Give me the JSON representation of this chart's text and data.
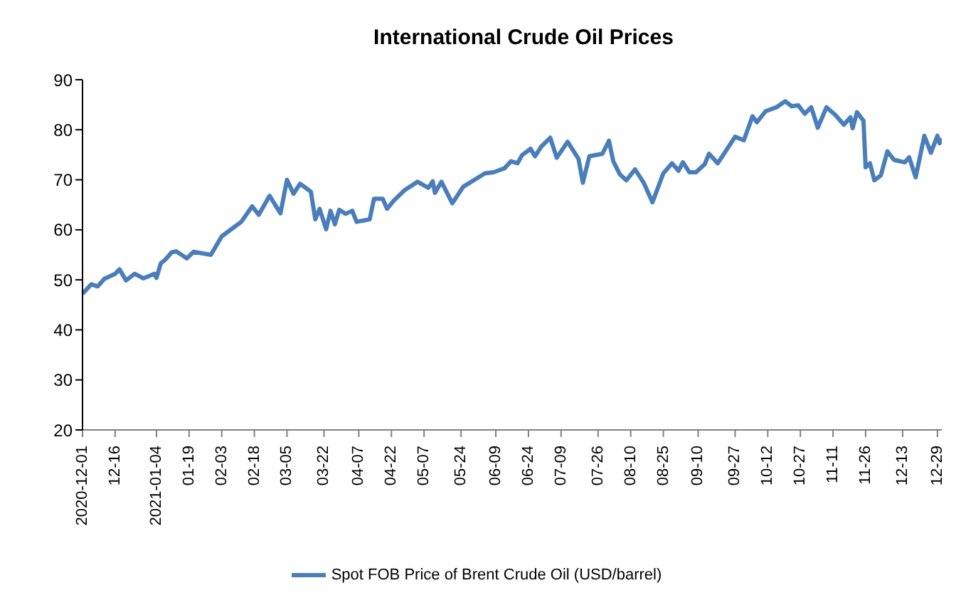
{
  "chart_data": {
    "type": "line",
    "title": "International Crude Oil Prices",
    "x": [
      "2020-12-01",
      "2020-12-05",
      "2020-12-08",
      "2020-12-11",
      "2020-12-16",
      "2020-12-18",
      "2020-12-21",
      "2020-12-25",
      "2020-12-29",
      "2021-01-03",
      "2021-01-04",
      "2021-01-06",
      "2021-01-08",
      "2021-01-11",
      "2021-01-13",
      "2021-01-18",
      "2021-01-21",
      "2021-01-29",
      "2021-02-03",
      "2021-02-12",
      "2021-02-17",
      "2021-02-20",
      "2021-02-25",
      "2021-03-02",
      "2021-03-05",
      "2021-03-08",
      "2021-03-11",
      "2021-03-16",
      "2021-03-18",
      "2021-03-20",
      "2021-03-23",
      "2021-03-25",
      "2021-03-27",
      "2021-03-29",
      "2021-04-01",
      "2021-04-04",
      "2021-04-06",
      "2021-04-12",
      "2021-04-14",
      "2021-04-18",
      "2021-04-20",
      "2021-04-23",
      "2021-04-28",
      "2021-05-04",
      "2021-05-09",
      "2021-05-11",
      "2021-05-12",
      "2021-05-15",
      "2021-05-20",
      "2021-05-25",
      "2021-06-04",
      "2021-06-08",
      "2021-06-13",
      "2021-06-16",
      "2021-06-19",
      "2021-06-21",
      "2021-06-25",
      "2021-06-27",
      "2021-06-30",
      "2021-07-04",
      "2021-07-07",
      "2021-07-12",
      "2021-07-17",
      "2021-07-19",
      "2021-07-22",
      "2021-07-28",
      "2021-07-31",
      "2021-08-02",
      "2021-08-05",
      "2021-08-08",
      "2021-08-12",
      "2021-08-16",
      "2021-08-20",
      "2021-08-25",
      "2021-08-29",
      "2021-09-01",
      "2021-09-03",
      "2021-09-06",
      "2021-09-09",
      "2021-09-13",
      "2021-09-15",
      "2021-09-19",
      "2021-09-27",
      "2021-10-01",
      "2021-10-05",
      "2021-10-07",
      "2021-10-11",
      "2021-10-16",
      "2021-10-20",
      "2021-10-23",
      "2021-10-26",
      "2021-10-29",
      "2021-11-01",
      "2021-11-04",
      "2021-11-08",
      "2021-11-12",
      "2021-11-16",
      "2021-11-19",
      "2021-11-20",
      "2021-11-22",
      "2021-11-25",
      "2021-11-26",
      "2021-11-28",
      "2021-11-30",
      "2021-12-03",
      "2021-12-06",
      "2021-12-09",
      "2021-12-14",
      "2021-12-16",
      "2021-12-19",
      "2021-12-23",
      "2021-12-26",
      "2021-12-29",
      "2021-12-30",
      "2021-12-31"
    ],
    "series": [
      {
        "name": "Spot FOB Price of Brent Crude Oil (USD/barrel)",
        "color": "#4a7ebb",
        "values": [
          47.2,
          49.1,
          48.7,
          50.2,
          51.2,
          52.1,
          49.9,
          51.2,
          50.3,
          51.2,
          50.4,
          53.3,
          54.0,
          55.5,
          55.7,
          54.3,
          55.6,
          55.0,
          58.7,
          61.6,
          64.7,
          63.0,
          66.8,
          63.3,
          70.0,
          67.2,
          69.2,
          67.6,
          62.1,
          64.2,
          60.1,
          63.8,
          61.1,
          64.0,
          63.2,
          63.8,
          61.6,
          62.1,
          66.2,
          66.2,
          64.2,
          65.8,
          67.9,
          69.6,
          68.4,
          69.7,
          67.4,
          69.6,
          65.3,
          68.6,
          71.3,
          71.5,
          72.3,
          73.7,
          73.3,
          74.9,
          76.2,
          74.7,
          76.7,
          78.4,
          74.4,
          77.6,
          74.2,
          69.4,
          74.7,
          75.2,
          77.8,
          73.7,
          71.1,
          69.9,
          72.1,
          69.4,
          65.5,
          71.3,
          73.3,
          71.8,
          73.5,
          71.5,
          71.5,
          73.1,
          75.2,
          73.3,
          78.6,
          77.9,
          82.7,
          81.5,
          83.7,
          84.5,
          85.7,
          84.7,
          84.9,
          83.2,
          84.5,
          80.4,
          84.5,
          83.0,
          81.0,
          82.5,
          80.3,
          83.5,
          81.8,
          72.5,
          73.3,
          69.9,
          70.9,
          75.7,
          74.0,
          73.5,
          74.5,
          70.5,
          78.8,
          75.4,
          78.8,
          77.3,
          78.3
        ]
      }
    ],
    "xlim": [
      "2020-12-01",
      "2021-12-31"
    ],
    "xticks": [
      {
        "value": "2020-12-01",
        "label": "2020-12-01"
      },
      {
        "value": "2020-12-16",
        "label": "12-16"
      },
      {
        "value": "2021-01-04",
        "label": "2021-01-04"
      },
      {
        "value": "2021-01-19",
        "label": "01-19"
      },
      {
        "value": "2021-02-03",
        "label": "02-03"
      },
      {
        "value": "2021-02-18",
        "label": "02-18"
      },
      {
        "value": "2021-03-05",
        "label": "03-05"
      },
      {
        "value": "2021-03-22",
        "label": "03-22"
      },
      {
        "value": "2021-04-07",
        "label": "04-07"
      },
      {
        "value": "2021-04-22",
        "label": "04-22"
      },
      {
        "value": "2021-05-07",
        "label": "05-07"
      },
      {
        "value": "2021-05-24",
        "label": "05-24"
      },
      {
        "value": "2021-06-09",
        "label": "06-09"
      },
      {
        "value": "2021-06-24",
        "label": "06-24"
      },
      {
        "value": "2021-07-09",
        "label": "07-09"
      },
      {
        "value": "2021-07-26",
        "label": "07-26"
      },
      {
        "value": "2021-08-10",
        "label": "08-10"
      },
      {
        "value": "2021-08-25",
        "label": "08-25"
      },
      {
        "value": "2021-09-10",
        "label": "09-10"
      },
      {
        "value": "2021-09-27",
        "label": "09-27"
      },
      {
        "value": "2021-10-12",
        "label": "10-12"
      },
      {
        "value": "2021-10-27",
        "label": "10-27"
      },
      {
        "value": "2021-11-11",
        "label": "11-11"
      },
      {
        "value": "2021-11-26",
        "label": "11-26"
      },
      {
        "value": "2021-12-13",
        "label": "12-13"
      },
      {
        "value": "2021-12-29",
        "label": "12-29"
      }
    ],
    "ylim": [
      20,
      90
    ],
    "yticks": [
      20,
      30,
      40,
      50,
      60,
      70,
      80,
      90
    ],
    "grid": false,
    "legend": "bottom",
    "marker": "none",
    "line_style": "solid"
  }
}
